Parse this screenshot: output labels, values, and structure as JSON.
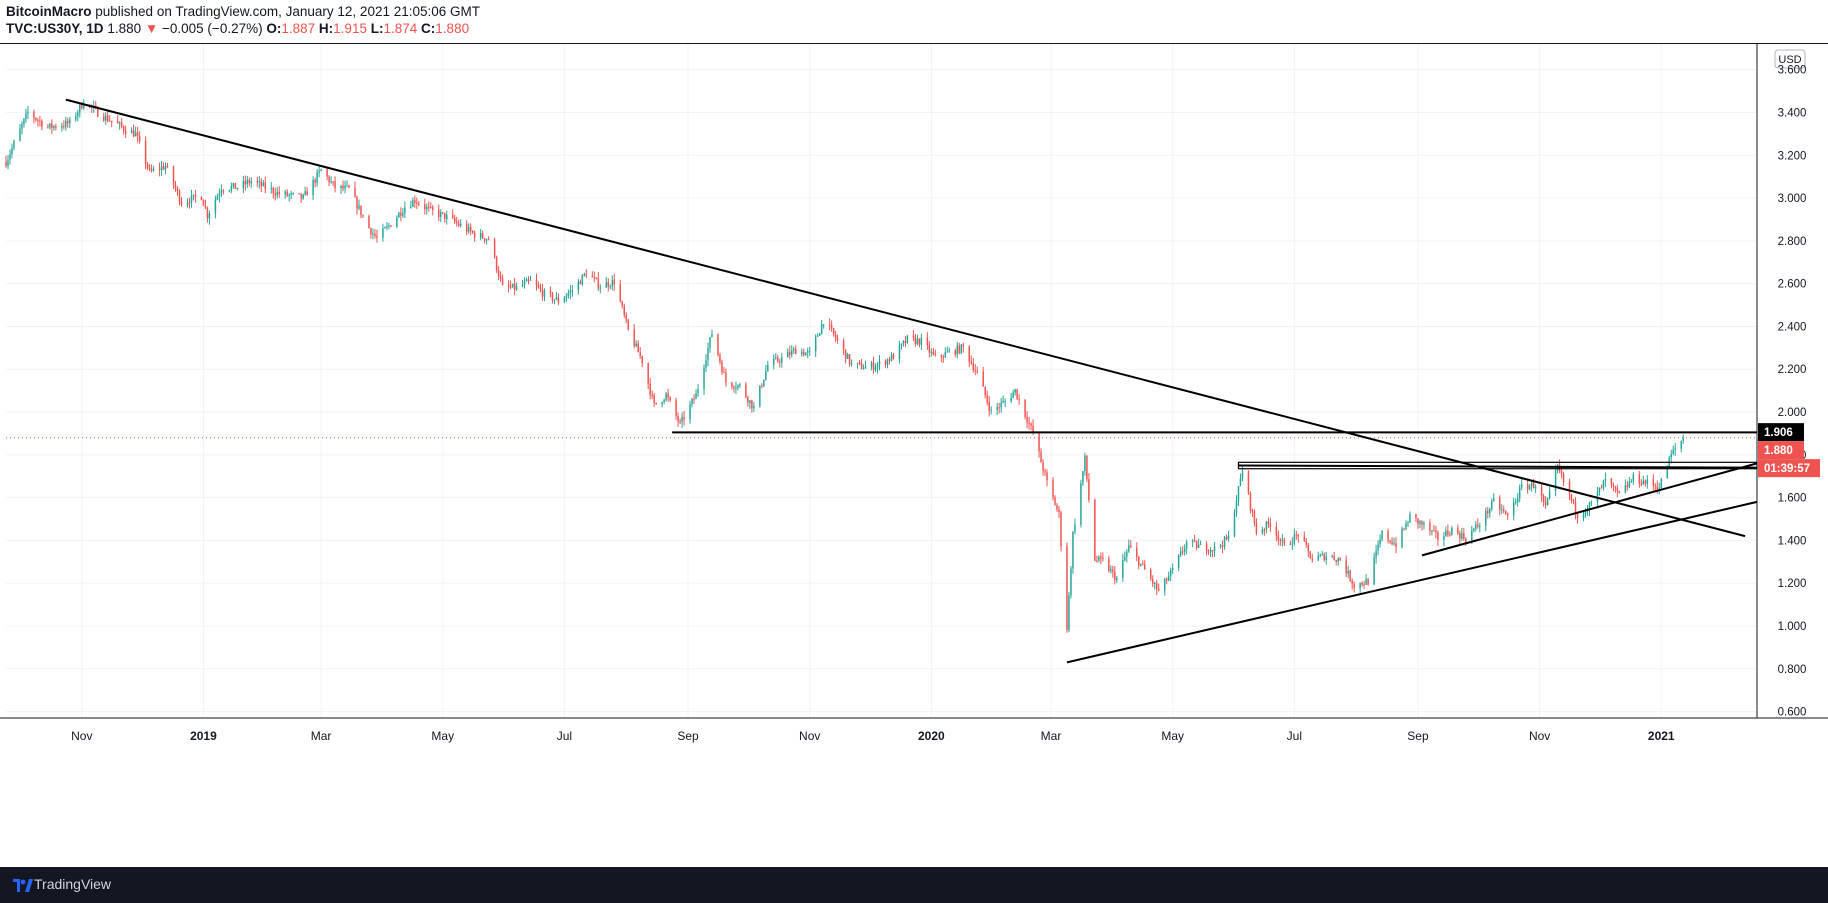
{
  "header": {
    "author": "BitcoinMacro",
    "published_text": " published on TradingView.com, January 12, 2021 21:05:06 GMT",
    "symbol": "TVC:US30Y, 1D",
    "last": "1.880",
    "change_arrow": "▼",
    "change": "−0.005 (−0.27%)",
    "o_label": "O:",
    "o_value": "1.887",
    "h_label": "H:",
    "h_value": "1.915",
    "l_label": "L:",
    "l_value": "1.874",
    "c_label": "C:",
    "c_value": "1.880"
  },
  "footer": {
    "brand": "TradingView",
    "logo_icon": "tradingview-logo-icon"
  },
  "colors": {
    "up": "#26a69a",
    "down": "#ef5350",
    "grid": "#f0f3fa",
    "axis_text": "#131722",
    "line": "#000000",
    "footer_bg": "#131722"
  },
  "chart_data": {
    "type": "candlestick",
    "title": "TVC:US30Y, 1D",
    "currency": "USD",
    "price_axis": {
      "label": "USD",
      "ylim": [
        0.57,
        3.72
      ],
      "ticks": [
        "0.600",
        "0.800",
        "1.000",
        "1.200",
        "1.400",
        "1.600",
        "1.800",
        "2.000",
        "2.200",
        "2.400",
        "2.600",
        "2.800",
        "3.000",
        "3.200",
        "3.400",
        "3.600"
      ]
    },
    "time_axis": {
      "start": "2018-09-24",
      "end": "2021-02-18",
      "ticks": [
        {
          "date": "2018-11-01",
          "label": "Nov",
          "bold": false
        },
        {
          "date": "2019-01-01",
          "label": "2019",
          "bold": true
        },
        {
          "date": "2019-03-01",
          "label": "Mar",
          "bold": false
        },
        {
          "date": "2019-05-01",
          "label": "May",
          "bold": false
        },
        {
          "date": "2019-07-01",
          "label": "Jul",
          "bold": false
        },
        {
          "date": "2019-09-01",
          "label": "Sep",
          "bold": false
        },
        {
          "date": "2019-11-01",
          "label": "Nov",
          "bold": false
        },
        {
          "date": "2020-01-01",
          "label": "2020",
          "bold": true
        },
        {
          "date": "2020-03-01",
          "label": "Mar",
          "bold": false
        },
        {
          "date": "2020-05-01",
          "label": "May",
          "bold": false
        },
        {
          "date": "2020-07-01",
          "label": "Jul",
          "bold": false
        },
        {
          "date": "2020-09-01",
          "label": "Sep",
          "bold": false
        },
        {
          "date": "2020-11-01",
          "label": "Nov",
          "bold": false
        },
        {
          "date": "2021-01-01",
          "label": "2021",
          "bold": true
        }
      ]
    },
    "price_path": [
      [
        "2018-09-24",
        3.17
      ],
      [
        "2018-10-05",
        3.4
      ],
      [
        "2018-10-15",
        3.33
      ],
      [
        "2018-10-26",
        3.35
      ],
      [
        "2018-11-02",
        3.45
      ],
      [
        "2018-11-09",
        3.4
      ],
      [
        "2018-11-23",
        3.32
      ],
      [
        "2018-11-28",
        3.3
      ],
      [
        "2018-12-05",
        3.12
      ],
      [
        "2018-12-13",
        3.15
      ],
      [
        "2018-12-21",
        2.98
      ],
      [
        "2018-12-31",
        3.01
      ],
      [
        "2019-01-03",
        2.92
      ],
      [
        "2019-01-10",
        3.05
      ],
      [
        "2019-01-18",
        3.05
      ],
      [
        "2019-01-25",
        3.08
      ],
      [
        "2019-02-01",
        3.05
      ],
      [
        "2019-02-08",
        3.02
      ],
      [
        "2019-02-20",
        3.0
      ],
      [
        "2019-03-01",
        3.13
      ],
      [
        "2019-03-08",
        3.05
      ],
      [
        "2019-03-15",
        3.04
      ],
      [
        "2019-03-25",
        2.86
      ],
      [
        "2019-03-29",
        2.81
      ],
      [
        "2019-04-04",
        2.87
      ],
      [
        "2019-04-12",
        2.96
      ],
      [
        "2019-04-17",
        2.99
      ],
      [
        "2019-04-25",
        2.94
      ],
      [
        "2019-05-03",
        2.91
      ],
      [
        "2019-05-10",
        2.87
      ],
      [
        "2019-05-17",
        2.83
      ],
      [
        "2019-05-24",
        2.81
      ],
      [
        "2019-05-31",
        2.58
      ],
      [
        "2019-06-07",
        2.58
      ],
      [
        "2019-06-14",
        2.61
      ],
      [
        "2019-06-21",
        2.55
      ],
      [
        "2019-06-28",
        2.52
      ],
      [
        "2019-07-05",
        2.57
      ],
      [
        "2019-07-12",
        2.65
      ],
      [
        "2019-07-19",
        2.59
      ],
      [
        "2019-07-26",
        2.61
      ],
      [
        "2019-08-02",
        2.38
      ],
      [
        "2019-08-09",
        2.24
      ],
      [
        "2019-08-15",
        2.03
      ],
      [
        "2019-08-21",
        2.08
      ],
      [
        "2019-08-28",
        1.94
      ],
      [
        "2019-09-05",
        2.08
      ],
      [
        "2019-09-13",
        2.37
      ],
      [
        "2019-09-20",
        2.14
      ],
      [
        "2019-09-27",
        2.12
      ],
      [
        "2019-10-04",
        2.02
      ],
      [
        "2019-10-11",
        2.22
      ],
      [
        "2019-10-18",
        2.25
      ],
      [
        "2019-10-25",
        2.29
      ],
      [
        "2019-11-01",
        2.27
      ],
      [
        "2019-11-08",
        2.43
      ],
      [
        "2019-11-15",
        2.33
      ],
      [
        "2019-11-22",
        2.22
      ],
      [
        "2019-11-29",
        2.21
      ],
      [
        "2019-12-05",
        2.22
      ],
      [
        "2019-12-13",
        2.26
      ],
      [
        "2019-12-20",
        2.34
      ],
      [
        "2019-12-27",
        2.33
      ],
      [
        "2020-01-03",
        2.25
      ],
      [
        "2020-01-10",
        2.28
      ],
      [
        "2020-01-17",
        2.3
      ],
      [
        "2020-01-24",
        2.18
      ],
      [
        "2020-01-31",
        2.0
      ],
      [
        "2020-02-07",
        2.05
      ],
      [
        "2020-02-12",
        2.1
      ],
      [
        "2020-02-21",
        1.9
      ],
      [
        "2020-02-28",
        1.67
      ],
      [
        "2020-03-05",
        1.52
      ],
      [
        "2020-03-09",
        0.99
      ],
      [
        "2020-03-12",
        1.43
      ],
      [
        "2020-03-18",
        1.78
      ],
      [
        "2020-03-23",
        1.31
      ],
      [
        "2020-03-27",
        1.3
      ],
      [
        "2020-04-03",
        1.22
      ],
      [
        "2020-04-09",
        1.37
      ],
      [
        "2020-04-17",
        1.26
      ],
      [
        "2020-04-24",
        1.16
      ],
      [
        "2020-05-01",
        1.26
      ],
      [
        "2020-05-08",
        1.39
      ],
      [
        "2020-05-15",
        1.37
      ],
      [
        "2020-05-22",
        1.36
      ],
      [
        "2020-05-29",
        1.41
      ],
      [
        "2020-06-05",
        1.73
      ],
      [
        "2020-06-12",
        1.44
      ],
      [
        "2020-06-19",
        1.48
      ],
      [
        "2020-06-26",
        1.37
      ],
      [
        "2020-07-03",
        1.43
      ],
      [
        "2020-07-10",
        1.31
      ],
      [
        "2020-07-17",
        1.33
      ],
      [
        "2020-07-24",
        1.31
      ],
      [
        "2020-07-31",
        1.19
      ],
      [
        "2020-08-07",
        1.21
      ],
      [
        "2020-08-14",
        1.43
      ],
      [
        "2020-08-21",
        1.38
      ],
      [
        "2020-08-28",
        1.51
      ],
      [
        "2020-09-04",
        1.47
      ],
      [
        "2020-09-11",
        1.41
      ],
      [
        "2020-09-18",
        1.45
      ],
      [
        "2020-09-25",
        1.41
      ],
      [
        "2020-10-02",
        1.48
      ],
      [
        "2020-10-09",
        1.58
      ],
      [
        "2020-10-16",
        1.51
      ],
      [
        "2020-10-23",
        1.65
      ],
      [
        "2020-10-30",
        1.66
      ],
      [
        "2020-11-04",
        1.55
      ],
      [
        "2020-11-10",
        1.74
      ],
      [
        "2020-11-20",
        1.52
      ],
      [
        "2020-11-27",
        1.57
      ],
      [
        "2020-12-04",
        1.68
      ],
      [
        "2020-12-11",
        1.61
      ],
      [
        "2020-12-18",
        1.69
      ],
      [
        "2020-12-31",
        1.65
      ],
      [
        "2021-01-06",
        1.8
      ],
      [
        "2021-01-12",
        1.88
      ]
    ],
    "trendlines": [
      {
        "name": "long-downtrend",
        "points": [
          [
            "2018-10-24",
            3.46
          ],
          [
            "2021-02-12",
            1.42
          ]
        ]
      },
      {
        "name": "support-2019-sep",
        "points": [
          [
            "2019-08-24",
            1.905
          ],
          [
            "2021-02-18",
            1.905
          ]
        ]
      },
      {
        "name": "support-lower",
        "points": [
          [
            "2020-03-09",
            0.83
          ],
          [
            "2021-02-18",
            1.58
          ]
        ]
      },
      {
        "name": "support-upper",
        "points": [
          [
            "2020-09-03",
            1.33
          ],
          [
            "2021-02-18",
            1.76
          ]
        ]
      },
      {
        "name": "resistance-box",
        "points": [
          [
            "2020-06-03",
            1.75
          ],
          [
            "2021-02-18",
            1.74
          ]
        ]
      }
    ],
    "horizontal_marker": {
      "name": "last-price",
      "value": 1.88,
      "style": "dotted"
    },
    "price_labels": [
      {
        "text": "1.906",
        "value": 1.906,
        "bg": "#000000",
        "color": "#ffffff"
      },
      {
        "text": "1.880",
        "value": 1.88,
        "bg": "#ef5350",
        "color": "#ffffff"
      },
      {
        "text": "01:39:57",
        "value": 1.76,
        "bg": "#ef5350",
        "color": "#ffffff"
      }
    ]
  }
}
